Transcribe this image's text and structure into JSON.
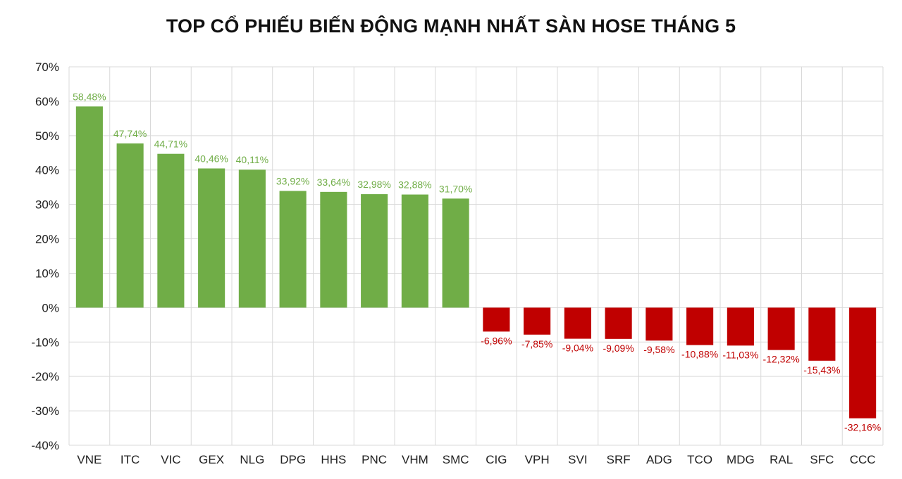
{
  "chart_data": {
    "type": "bar",
    "title": "TOP CỔ PHIẾU BIẾN ĐỘNG MẠNH NHẤT SÀN HOSE THÁNG 5",
    "xlabel": "",
    "ylabel": "",
    "ylim": [
      -40,
      70
    ],
    "yticks": [
      "70%",
      "60%",
      "50%",
      "40%",
      "30%",
      "20%",
      "10%",
      "0%",
      "-10%",
      "-20%",
      "-30%",
      "-40%"
    ],
    "ytick_values": [
      70,
      60,
      50,
      40,
      30,
      20,
      10,
      0,
      -10,
      -20,
      -30,
      -40
    ],
    "grid": true,
    "legend": "none",
    "positive_color": "#70ad47",
    "negative_color": "#c00000",
    "categories": [
      "VNE",
      "ITC",
      "VIC",
      "GEX",
      "NLG",
      "DPG",
      "HHS",
      "PNC",
      "VHM",
      "SMC",
      "CIG",
      "VPH",
      "SVI",
      "SRF",
      "ADG",
      "TCO",
      "MDG",
      "RAL",
      "SFC",
      "CCC"
    ],
    "values": [
      58.48,
      47.74,
      44.71,
      40.46,
      40.11,
      33.92,
      33.64,
      32.98,
      32.88,
      31.7,
      -6.96,
      -7.85,
      -9.04,
      -9.09,
      -9.58,
      -10.88,
      -11.03,
      -12.32,
      -15.43,
      -32.16
    ],
    "data_labels": [
      "58,48%",
      "47,74%",
      "44,71%",
      "40,46%",
      "40,11%",
      "33,92%",
      "33,64%",
      "32,98%",
      "32,88%",
      "31,70%",
      "-6,96%",
      "-7,85%",
      "-9,04%",
      "-9,09%",
      "-9,58%",
      "-10,88%",
      "-11,03%",
      "-12,32%",
      "-15,43%",
      "-32,16%"
    ]
  }
}
